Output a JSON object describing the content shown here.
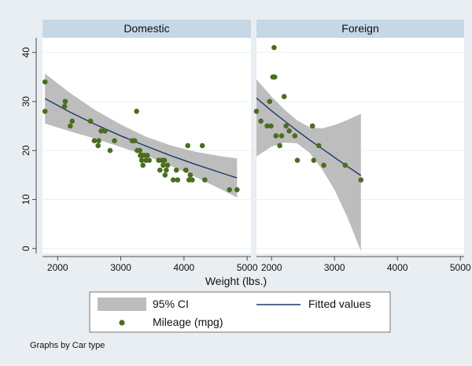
{
  "chart_data": {
    "type": "scatter",
    "xlabel": "Weight (lbs.)",
    "ylabel": "",
    "xlim": [
      1760,
      5060
    ],
    "ylim": [
      -1,
      43
    ],
    "x_ticks": [
      2000,
      3000,
      4000,
      5000
    ],
    "y_ticks": [
      0,
      10,
      20,
      30,
      40
    ],
    "grid": true,
    "legend_position": "bottom",
    "legend": {
      "ci": "95% CI",
      "fit": "Fitted values",
      "points": "Mileage (mpg)"
    },
    "note": "Graphs by Car type",
    "colors": {
      "points": "#4a6e1d",
      "fit_line": "#1a3a6b",
      "ci_band": "#bdbdbd",
      "panel_header": "#c6d7e6",
      "plot_bg": "#ffffff",
      "outer_bg": "#e9eef3"
    },
    "panels": [
      {
        "title": "Domestic",
        "points": [
          [
            1800,
            34
          ],
          [
            1800,
            28
          ],
          [
            2110,
            29
          ],
          [
            2120,
            30
          ],
          [
            2200,
            25
          ],
          [
            2230,
            26
          ],
          [
            2520,
            26
          ],
          [
            2580,
            22
          ],
          [
            2640,
            21
          ],
          [
            2650,
            22
          ],
          [
            2690,
            24
          ],
          [
            2750,
            24
          ],
          [
            2830,
            20
          ],
          [
            2900,
            22
          ],
          [
            3180,
            22
          ],
          [
            3220,
            22
          ],
          [
            3250,
            28
          ],
          [
            3260,
            20
          ],
          [
            3300,
            20
          ],
          [
            3310,
            19
          ],
          [
            3330,
            18
          ],
          [
            3340,
            19
          ],
          [
            3350,
            17
          ],
          [
            3370,
            19
          ],
          [
            3400,
            18
          ],
          [
            3420,
            19
          ],
          [
            3450,
            18
          ],
          [
            3600,
            18
          ],
          [
            3620,
            16
          ],
          [
            3650,
            18
          ],
          [
            3670,
            17
          ],
          [
            3690,
            18
          ],
          [
            3700,
            15
          ],
          [
            3720,
            16
          ],
          [
            3740,
            17
          ],
          [
            3830,
            14
          ],
          [
            3880,
            16
          ],
          [
            3900,
            14
          ],
          [
            4030,
            16
          ],
          [
            4060,
            21
          ],
          [
            4080,
            14
          ],
          [
            4100,
            15
          ],
          [
            4130,
            14
          ],
          [
            4290,
            21
          ],
          [
            4330,
            14
          ],
          [
            4720,
            12
          ],
          [
            4840,
            12
          ]
        ],
        "fit": [
          [
            1800,
            30.6
          ],
          [
            2200,
            27.8
          ],
          [
            2600,
            25.3
          ],
          [
            3000,
            23.0
          ],
          [
            3400,
            20.9
          ],
          [
            3800,
            18.9
          ],
          [
            4200,
            17.1
          ],
          [
            4600,
            15.4
          ],
          [
            4840,
            14.4
          ]
        ],
        "ci_upper": [
          [
            1800,
            35.7
          ],
          [
            2200,
            31.7
          ],
          [
            2600,
            28.2
          ],
          [
            3000,
            25.3
          ],
          [
            3400,
            22.8
          ],
          [
            3800,
            21.0
          ],
          [
            4200,
            19.7
          ],
          [
            4600,
            18.8
          ],
          [
            4840,
            18.4
          ]
        ],
        "ci_lower": [
          [
            1800,
            25.5
          ],
          [
            2200,
            23.9
          ],
          [
            2600,
            22.4
          ],
          [
            3000,
            20.7
          ],
          [
            3400,
            19.0
          ],
          [
            3800,
            16.8
          ],
          [
            4200,
            14.5
          ],
          [
            4600,
            12.0
          ],
          [
            4840,
            10.4
          ]
        ]
      },
      {
        "title": "Foreign",
        "points": [
          [
            1760,
            28
          ],
          [
            1830,
            26
          ],
          [
            1930,
            25
          ],
          [
            1970,
            30
          ],
          [
            1990,
            25
          ],
          [
            2020,
            35
          ],
          [
            2040,
            41
          ],
          [
            2050,
            35
          ],
          [
            2070,
            23
          ],
          [
            2130,
            21
          ],
          [
            2160,
            23
          ],
          [
            2200,
            31
          ],
          [
            2230,
            25
          ],
          [
            2280,
            24
          ],
          [
            2370,
            23
          ],
          [
            2410,
            18
          ],
          [
            2650,
            25
          ],
          [
            2670,
            18
          ],
          [
            2750,
            21
          ],
          [
            2830,
            17
          ],
          [
            3170,
            17
          ],
          [
            3420,
            14
          ]
        ],
        "fit": [
          [
            1760,
            30.7
          ],
          [
            2000,
            28.1
          ],
          [
            2200,
            26.1
          ],
          [
            2400,
            24.1
          ],
          [
            2600,
            22.2
          ],
          [
            2800,
            20.4
          ],
          [
            3000,
            18.6
          ],
          [
            3200,
            16.8
          ],
          [
            3420,
            14.9
          ]
        ],
        "ci_upper": [
          [
            1760,
            34.5
          ],
          [
            2000,
            31.0
          ],
          [
            2200,
            28.4
          ],
          [
            2400,
            26.2
          ],
          [
            2600,
            24.8
          ],
          [
            2800,
            24.5
          ],
          [
            3000,
            25.2
          ],
          [
            3200,
            26.2
          ],
          [
            3420,
            27.5
          ]
        ],
        "ci_lower": [
          [
            1760,
            18.8
          ],
          [
            2000,
            20.8
          ],
          [
            2200,
            21.6
          ],
          [
            2400,
            21.5
          ],
          [
            2600,
            19.6
          ],
          [
            2800,
            16.2
          ],
          [
            3000,
            12.0
          ],
          [
            3200,
            6.5
          ],
          [
            3420,
            -0.5
          ]
        ]
      }
    ]
  }
}
